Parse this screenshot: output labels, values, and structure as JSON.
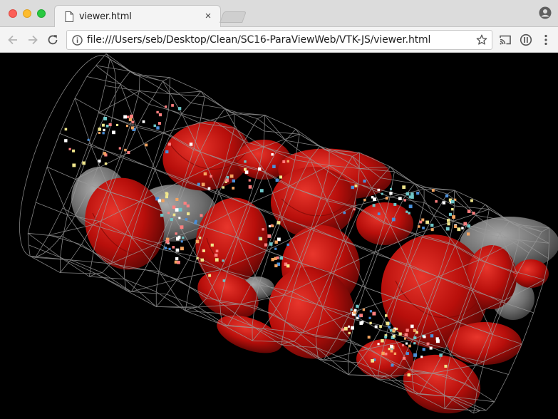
{
  "window": {
    "controls": [
      "close",
      "minimize",
      "zoom"
    ]
  },
  "tab": {
    "title": "viewer.html",
    "icon": "document-icon",
    "close_symbol": "×"
  },
  "toolbar": {
    "url": "file:///Users/seb/Desktop/Clean/SC16-ParaViewWeb/VTK-JS/viewer.html",
    "icons": [
      "back-icon",
      "forward-icon",
      "reload-icon",
      "info-icon",
      "star-icon",
      "cast-icon",
      "extension-icon",
      "menu-icon"
    ]
  },
  "scene": {
    "background": "#000000",
    "wireframe_color": "#9a9a9a",
    "cell_color": "#c0100c",
    "cell_highlight": "#e8362c",
    "platelet_color": "#8a8a8a",
    "particle_colors": [
      "#f0e68c",
      "#6ec6c8",
      "#ff7f7f",
      "#ffffff",
      "#4a90d9",
      "#f4a460"
    ]
  }
}
